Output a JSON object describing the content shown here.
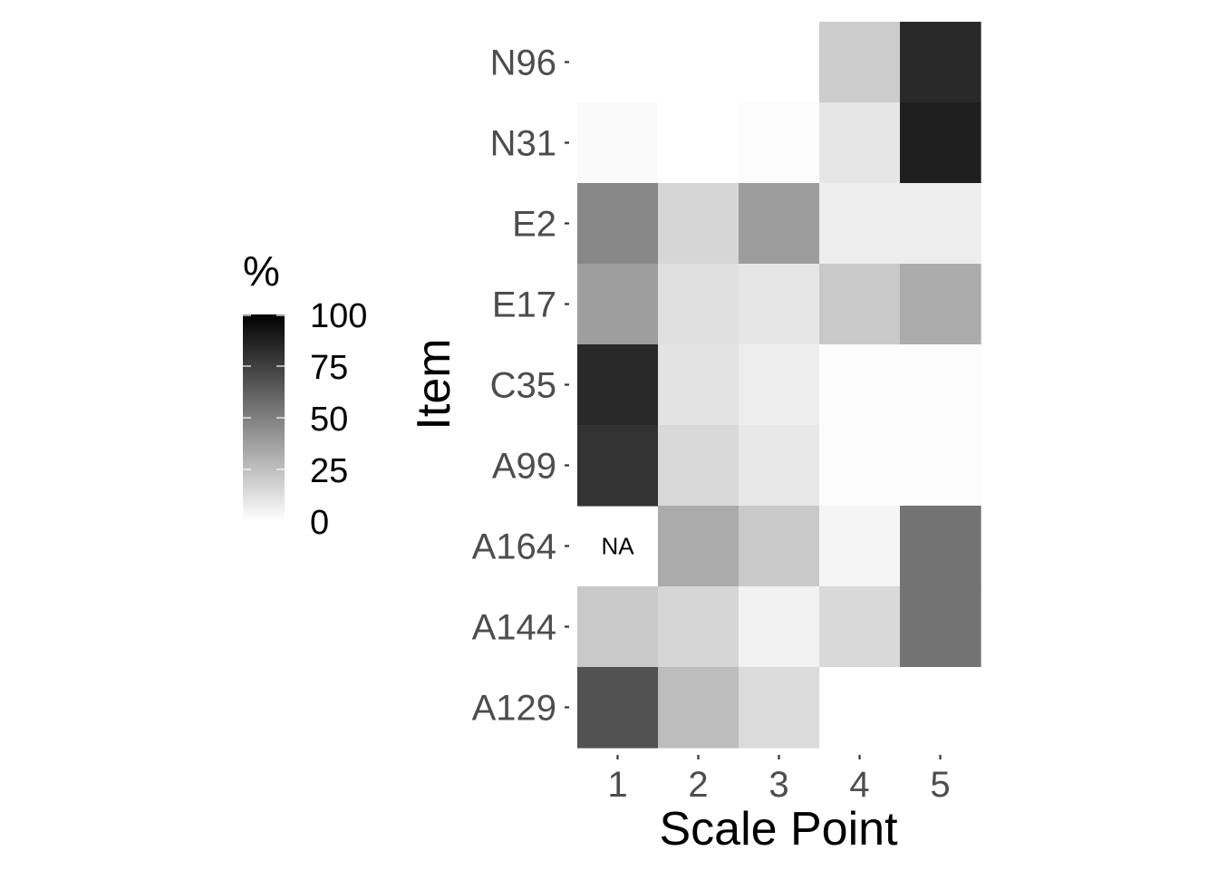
{
  "chart_data": {
    "type": "heatmap",
    "title": "",
    "xlabel": "Scale Point",
    "ylabel": "Item",
    "x_categories": [
      "1",
      "2",
      "3",
      "4",
      "5"
    ],
    "y_categories": [
      "N96",
      "N31",
      "E2",
      "E17",
      "C35",
      "A99",
      "A164",
      "A144",
      "A129"
    ],
    "values": [
      [
        0,
        0,
        0,
        20,
        84
      ],
      [
        2,
        0,
        1,
        10,
        88
      ],
      [
        47,
        16,
        39,
        7,
        7
      ],
      [
        38,
        12,
        10,
        21,
        33
      ],
      [
        84,
        11,
        7,
        1,
        1
      ],
      [
        80,
        15,
        9,
        1,
        1
      ],
      [
        null,
        33,
        21,
        4,
        55
      ],
      [
        21,
        16,
        5,
        15,
        55
      ],
      [
        68,
        26,
        14,
        0,
        0
      ]
    ],
    "na_label": "NA",
    "legend": {
      "title": "%",
      "labels": [
        "100",
        "75",
        "50",
        "25",
        "0"
      ],
      "breaks": [
        100,
        75,
        50,
        25,
        0
      ],
      "limits": [
        0,
        100
      ],
      "low_color": "#ffffff",
      "high_color": "#000000",
      "placement": "left"
    }
  }
}
